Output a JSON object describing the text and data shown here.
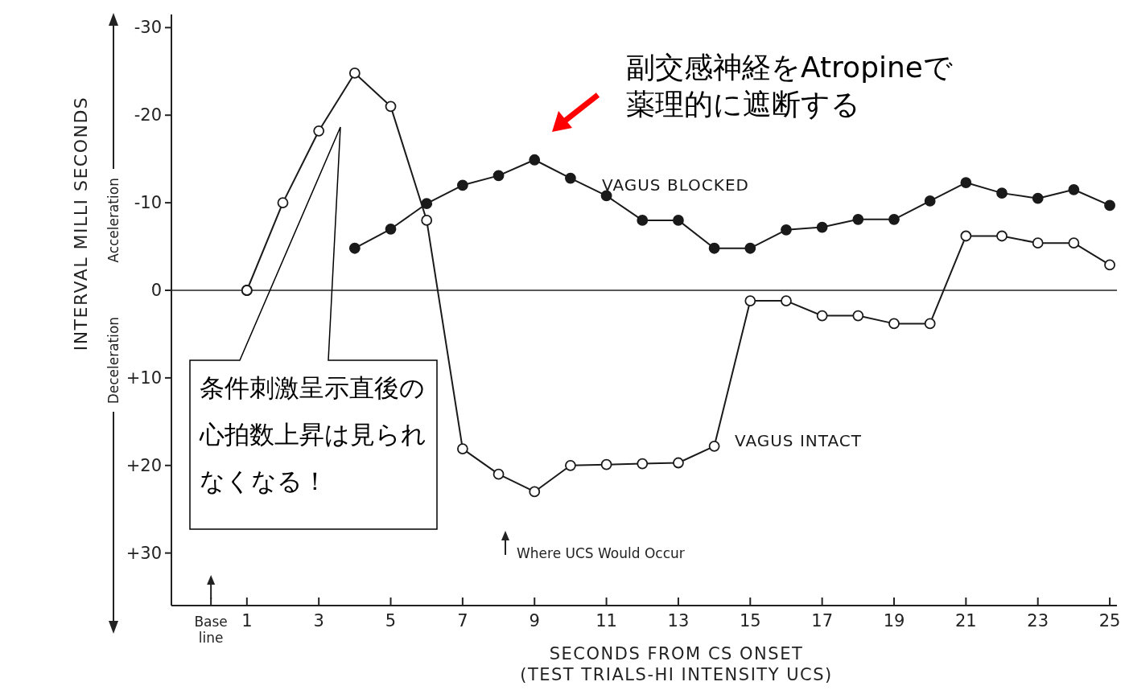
{
  "chart_data": {
    "type": "line",
    "xlabel": "SECONDS FROM CS ONSET",
    "ylabel": "INTERVAL MILLI SECONDS",
    "x": [
      1,
      2,
      3,
      4,
      5,
      6,
      7,
      8,
      9,
      10,
      11,
      12,
      13,
      14,
      15,
      16,
      17,
      18,
      19,
      20,
      21,
      22,
      23,
      24,
      25
    ],
    "series": [
      {
        "name": "VAGUS BLOCKED",
        "color": "#1a1a1a",
        "values": [
          0,
          null,
          null,
          -4.8,
          -7,
          -9.9,
          -12,
          -13.1,
          -14.9,
          -12.8,
          -10.8,
          -8,
          -8,
          -4.8,
          -4.8,
          -6.9,
          -7.2,
          -8.1,
          -8.1,
          -10.2,
          -12.3,
          -11.1,
          -10.5,
          -11.5,
          -9.7
        ]
      },
      {
        "name": "VAGUS INTACT",
        "color": "#1a1a1a",
        "values": [
          0,
          -10,
          -18.2,
          -24.8,
          -21,
          -8,
          18.1,
          21,
          23,
          20,
          19.9,
          19.8,
          19.7,
          17.8,
          1.2,
          1.2,
          2.9,
          2.9,
          3.8,
          3.8,
          -6.2,
          -6.2,
          -5.4,
          -5.4,
          -2.9
        ]
      }
    ],
    "xlim": [
      -1.1,
      25.2
    ],
    "ylim": [
      36,
      -31.5
    ],
    "xticks": [
      {
        "value": 0,
        "label": "Base line"
      },
      1,
      3,
      5,
      7,
      9,
      11,
      13,
      15,
      17,
      19,
      21,
      23,
      25
    ],
    "yticks": [
      -30,
      -20,
      -10,
      0,
      {
        "value": 10,
        "label": "+10"
      },
      {
        "value": 20,
        "label": "+20"
      },
      {
        "value": 30,
        "label": "+30"
      }
    ],
    "ref_lines": [
      {
        "axis": "y",
        "value": 0
      }
    ],
    "marker": "circle",
    "line_style": "solid",
    "grid": false,
    "legend": false,
    "annotations": [
      "(TEST TRIALS-HI INTENSITY UCS)",
      "Acceleration",
      "Deceleration",
      "Where UCS Would Occur",
      "副交感神経をAtropineで薬理的に遮断する",
      "条件刺激呈示直後の心拍数上昇は見られなくなる！"
    ]
  }
}
